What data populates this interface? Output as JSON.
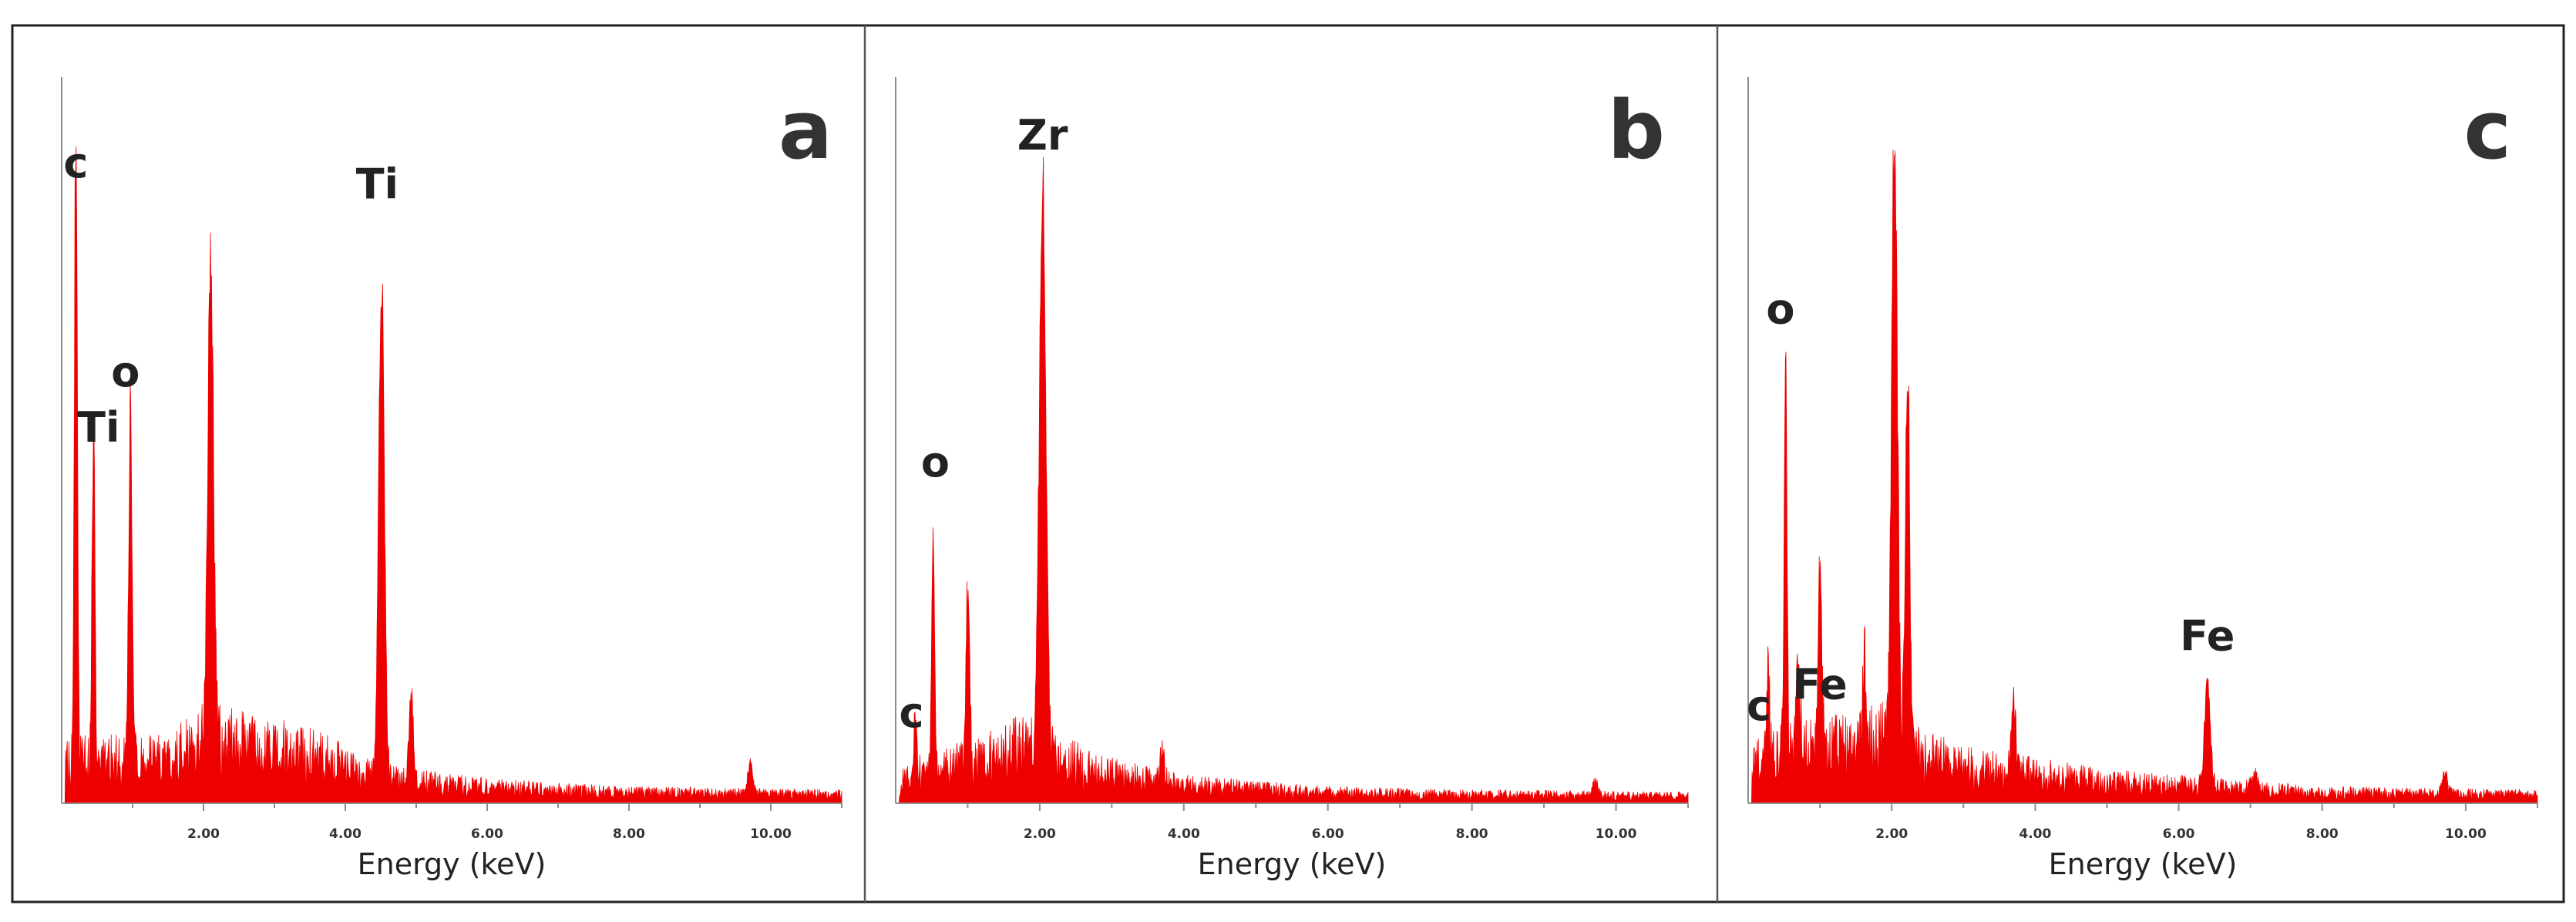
{
  "figure": {
    "colors": {
      "spectrum": "#ee0000",
      "frame": "#222222",
      "axis": "#8c8c8c"
    }
  },
  "chart_data": [
    {
      "type": "area",
      "panel_letter": "a",
      "xlabel": "Energy (keV)",
      "ylabel": "",
      "xlim": [
        0,
        11
      ],
      "ylim": [
        0,
        100
      ],
      "x_ticks": [
        2,
        4,
        6,
        8,
        10
      ],
      "x_tick_labels": [
        "2.00",
        "4.00",
        "6.00",
        "8.00",
        "10.00"
      ],
      "grid": false,
      "baseline": 7,
      "noise": [
        [
          0.05,
          6
        ],
        [
          0.6,
          6
        ],
        [
          1.5,
          6
        ],
        [
          2.0,
          9
        ],
        [
          2.6,
          8
        ],
        [
          3.5,
          7
        ],
        [
          4.3,
          4
        ],
        [
          5.0,
          3
        ],
        [
          6.0,
          2.2
        ],
        [
          8.0,
          1.5
        ],
        [
          11.0,
          1.2
        ]
      ],
      "peaks": [
        {
          "x": 0.2,
          "y": 97,
          "w": 0.02
        },
        {
          "x": 0.45,
          "y": 52,
          "w": 0.02
        },
        {
          "x": 0.97,
          "y": 52,
          "w": 0.025
        },
        {
          "x": 2.1,
          "y": 74,
          "w": 0.04
        },
        {
          "x": 4.51,
          "y": 76,
          "w": 0.04
        },
        {
          "x": 4.93,
          "y": 13,
          "w": 0.03
        },
        {
          "x": 9.71,
          "y": 5,
          "w": 0.035
        }
      ],
      "annotations": [
        {
          "text": "c",
          "x": 0.2,
          "y": 90
        },
        {
          "text": "Ti",
          "x": 0.52,
          "y": 52
        },
        {
          "text": "o",
          "x": 0.9,
          "y": 60
        },
        {
          "text": "Ti",
          "x": 4.45,
          "y": 87
        }
      ]
    },
    {
      "type": "area",
      "panel_letter": "b",
      "xlabel": "Energy (keV)",
      "ylabel": "",
      "xlim": [
        0,
        11
      ],
      "ylim": [
        0,
        100
      ],
      "x_ticks": [
        2,
        4,
        6,
        8,
        10
      ],
      "x_tick_labels": [
        "2.00",
        "4.00",
        "6.00",
        "8.00",
        "10.00"
      ],
      "grid": false,
      "baseline": 6,
      "noise": [
        [
          0.05,
          3
        ],
        [
          0.5,
          5
        ],
        [
          1.2,
          6
        ],
        [
          1.8,
          8
        ],
        [
          2.3,
          6
        ],
        [
          3.0,
          4
        ],
        [
          4.0,
          2.5
        ],
        [
          6.0,
          1.5
        ],
        [
          8.0,
          1.2
        ],
        [
          11.0,
          1
        ]
      ],
      "peaks": [
        {
          "x": 0.27,
          "y": 9,
          "w": 0.02
        },
        {
          "x": 0.52,
          "y": 37,
          "w": 0.02
        },
        {
          "x": 1.0,
          "y": 25,
          "w": 0.025
        },
        {
          "x": 2.04,
          "y": 86,
          "w": 0.045
        },
        {
          "x": 3.7,
          "y": 5,
          "w": 0.03
        },
        {
          "x": 9.71,
          "y": 2,
          "w": 0.04
        }
      ],
      "annotations": [
        {
          "text": "Zr",
          "x": 2.04,
          "y": 94
        },
        {
          "text": "o",
          "x": 0.55,
          "y": 47
        },
        {
          "text": "c",
          "x": 0.22,
          "y": 11
        }
      ]
    },
    {
      "type": "area",
      "panel_letter": "c",
      "xlabel": "Energy (keV)",
      "ylabel": "",
      "xlim": [
        0,
        11
      ],
      "ylim": [
        0,
        100
      ],
      "x_ticks": [
        2,
        4,
        6,
        8,
        10
      ],
      "x_tick_labels": [
        "2.00",
        "4.00",
        "6.00",
        "8.00",
        "10.00"
      ],
      "grid": false,
      "baseline": 7,
      "noise": [
        [
          0.05,
          6
        ],
        [
          0.6,
          7
        ],
        [
          1.4,
          8
        ],
        [
          1.9,
          9
        ],
        [
          2.3,
          7
        ],
        [
          3.0,
          5
        ],
        [
          4.0,
          4
        ],
        [
          5.0,
          3
        ],
        [
          6.0,
          2.5
        ],
        [
          8.0,
          1.5
        ],
        [
          11.0,
          1.2
        ]
      ],
      "peaks": [
        {
          "x": 0.28,
          "y": 13,
          "w": 0.02
        },
        {
          "x": 0.52,
          "y": 60,
          "w": 0.02
        },
        {
          "x": 0.7,
          "y": 14,
          "w": 0.025
        },
        {
          "x": 1.0,
          "y": 28,
          "w": 0.025
        },
        {
          "x": 1.62,
          "y": 13,
          "w": 0.025
        },
        {
          "x": 2.04,
          "y": 92,
          "w": 0.04
        },
        {
          "x": 2.22,
          "y": 60,
          "w": 0.03
        },
        {
          "x": 3.7,
          "y": 10,
          "w": 0.03
        },
        {
          "x": 6.4,
          "y": 16,
          "w": 0.04
        },
        {
          "x": 7.06,
          "y": 2,
          "w": 0.04
        },
        {
          "x": 9.71,
          "y": 3,
          "w": 0.04
        }
      ],
      "annotations": [
        {
          "text": "o",
          "x": 0.45,
          "y": 69
        },
        {
          "text": "Fe",
          "x": 6.4,
          "y": 22
        },
        {
          "text": "c",
          "x": 0.15,
          "y": 12
        },
        {
          "text": "Fe",
          "x": 1.0,
          "y": 15
        }
      ]
    }
  ]
}
